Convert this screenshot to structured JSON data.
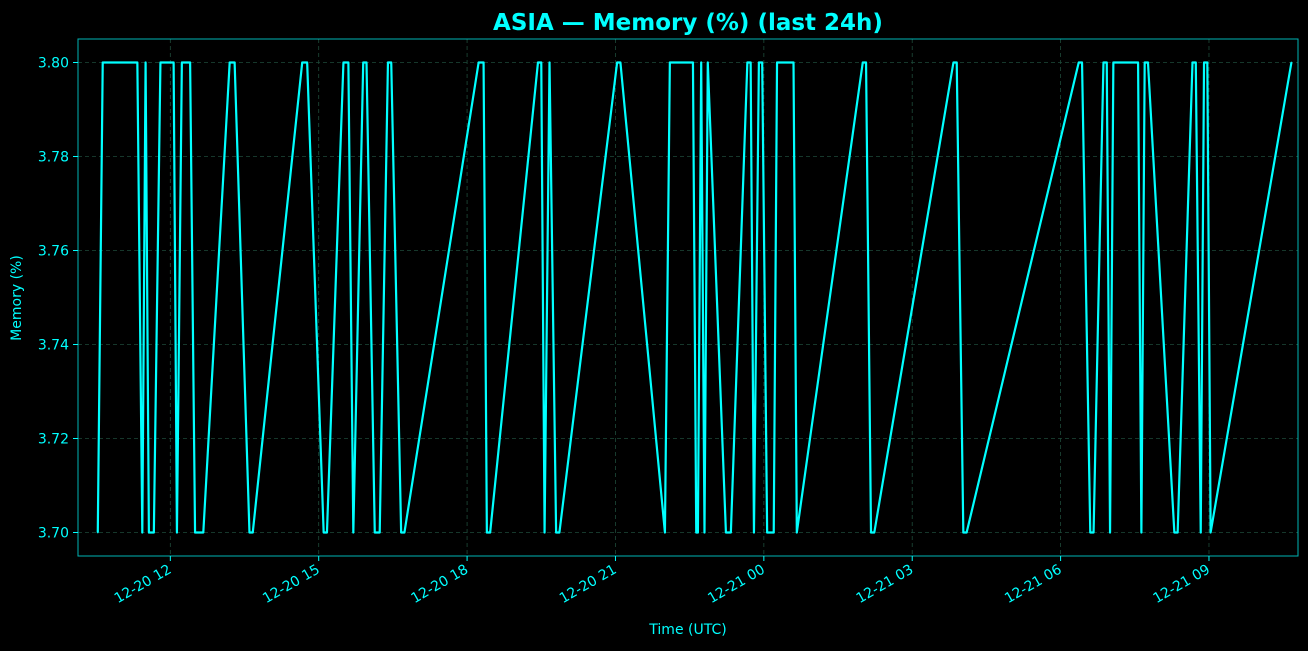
{
  "colors": {
    "background": "#000000",
    "accent": "#00ffff",
    "grid": "#1e4a3a"
  },
  "chart_data": {
    "type": "line",
    "title": "ASIA — Memory (%) (last 24h)",
    "xlabel": "Time (UTC)",
    "ylabel": "Memory (%)",
    "grid": true,
    "x_range": [
      "2020-12-20 10:08",
      "2020-12-21 10:48"
    ],
    "ylim": [
      3.695,
      3.805
    ],
    "x_ticks": [
      {
        "t": "2020-12-20 12:00",
        "label": "12-20 12"
      },
      {
        "t": "2020-12-20 15:00",
        "label": "12-20 15"
      },
      {
        "t": "2020-12-20 18:00",
        "label": "12-20 18"
      },
      {
        "t": "2020-12-20 21:00",
        "label": "12-20 21"
      },
      {
        "t": "2020-12-21 00:00",
        "label": "12-21 00"
      },
      {
        "t": "2020-12-21 03:00",
        "label": "12-21 03"
      },
      {
        "t": "2020-12-21 06:00",
        "label": "12-21 06"
      },
      {
        "t": "2020-12-21 09:00",
        "label": "12-21 09"
      }
    ],
    "y_ticks": [
      {
        "v": 3.7,
        "label": "3.70"
      },
      {
        "v": 3.72,
        "label": "3.72"
      },
      {
        "v": 3.74,
        "label": "3.74"
      },
      {
        "v": 3.76,
        "label": "3.76"
      },
      {
        "v": 3.78,
        "label": "3.78"
      },
      {
        "v": 3.8,
        "label": "3.80"
      }
    ],
    "series": [
      {
        "color": "#00ffff",
        "x": [
          "2020-12-20 10:32",
          "2020-12-20 10:38",
          "2020-12-20 11:20",
          "2020-12-20 11:26",
          "2020-12-20 11:30",
          "2020-12-20 11:34",
          "2020-12-20 11:40",
          "2020-12-20 11:48",
          "2020-12-20 12:04",
          "2020-12-20 12:08",
          "2020-12-20 12:14",
          "2020-12-20 12:24",
          "2020-12-20 12:30",
          "2020-12-20 12:40",
          "2020-12-20 13:12",
          "2020-12-20 13:18",
          "2020-12-20 13:36",
          "2020-12-20 13:40",
          "2020-12-20 14:40",
          "2020-12-20 14:46",
          "2020-12-20 15:06",
          "2020-12-20 15:10",
          "2020-12-20 15:30",
          "2020-12-20 15:36",
          "2020-12-20 15:42",
          "2020-12-20 15:54",
          "2020-12-20 15:58",
          "2020-12-20 16:08",
          "2020-12-20 16:14",
          "2020-12-20 16:24",
          "2020-12-20 16:28",
          "2020-12-20 16:40",
          "2020-12-20 16:44",
          "2020-12-20 18:14",
          "2020-12-20 18:20",
          "2020-12-20 18:24",
          "2020-12-20 18:28",
          "2020-12-20 19:26",
          "2020-12-20 19:30",
          "2020-12-20 19:34",
          "2020-12-20 19:40",
          "2020-12-20 19:48",
          "2020-12-20 19:52",
          "2020-12-20 21:02",
          "2020-12-20 21:06",
          "2020-12-20 22:00",
          "2020-12-20 22:06",
          "2020-12-20 22:34",
          "2020-12-20 22:38",
          "2020-12-20 22:40",
          "2020-12-20 22:44",
          "2020-12-20 22:48",
          "2020-12-20 22:52",
          "2020-12-20 23:14",
          "2020-12-20 23:20",
          "2020-12-20 23:40",
          "2020-12-20 23:44",
          "2020-12-20 23:48",
          "2020-12-20 23:54",
          "2020-12-20 23:58",
          "2020-12-21 00:04",
          "2020-12-21 00:12",
          "2020-12-21 00:16",
          "2020-12-21 00:36",
          "2020-12-21 00:40",
          "2020-12-21 02:00",
          "2020-12-21 02:04",
          "2020-12-21 02:10",
          "2020-12-21 02:14",
          "2020-12-21 03:50",
          "2020-12-21 03:54",
          "2020-12-21 04:02",
          "2020-12-21 04:06",
          "2020-12-21 06:22",
          "2020-12-21 06:26",
          "2020-12-21 06:36",
          "2020-12-21 06:40",
          "2020-12-21 06:52",
          "2020-12-21 06:56",
          "2020-12-21 07:00",
          "2020-12-21 07:04",
          "2020-12-21 07:34",
          "2020-12-21 07:38",
          "2020-12-21 07:42",
          "2020-12-21 07:46",
          "2020-12-21 08:18",
          "2020-12-21 08:22",
          "2020-12-21 08:40",
          "2020-12-21 08:44",
          "2020-12-21 08:50",
          "2020-12-21 08:54",
          "2020-12-21 08:58",
          "2020-12-21 09:02",
          "2020-12-21 10:40"
        ],
        "values": [
          3.7,
          3.8,
          3.8,
          3.7,
          3.8,
          3.7,
          3.7,
          3.8,
          3.8,
          3.7,
          3.8,
          3.8,
          3.7,
          3.7,
          3.8,
          3.8,
          3.7,
          3.7,
          3.8,
          3.8,
          3.7,
          3.7,
          3.8,
          3.8,
          3.7,
          3.8,
          3.8,
          3.7,
          3.7,
          3.8,
          3.8,
          3.7,
          3.7,
          3.8,
          3.8,
          3.7,
          3.7,
          3.8,
          3.8,
          3.7,
          3.8,
          3.7,
          3.7,
          3.8,
          3.8,
          3.7,
          3.8,
          3.8,
          3.7,
          3.7,
          3.8,
          3.7,
          3.8,
          3.7,
          3.7,
          3.8,
          3.8,
          3.7,
          3.8,
          3.8,
          3.7,
          3.7,
          3.8,
          3.8,
          3.7,
          3.8,
          3.8,
          3.7,
          3.7,
          3.8,
          3.8,
          3.7,
          3.7,
          3.8,
          3.8,
          3.7,
          3.7,
          3.8,
          3.8,
          3.7,
          3.8,
          3.8,
          3.7,
          3.8,
          3.8,
          3.7,
          3.7,
          3.8,
          3.8,
          3.7,
          3.8,
          3.8,
          3.7,
          3.8
        ]
      }
    ]
  }
}
